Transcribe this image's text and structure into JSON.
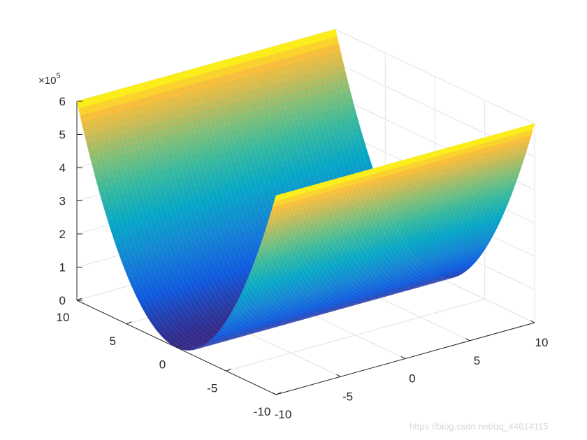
{
  "chart_data": {
    "type": "surface",
    "title": "",
    "xlabel": "",
    "ylabel": "",
    "zlabel": "",
    "function": "z = 6000 * y^2",
    "x_range": [
      -10,
      10
    ],
    "y_range": [
      -10,
      10
    ],
    "z_range": [
      0,
      600000
    ],
    "x_ticks": [
      -10,
      -5,
      0,
      5,
      10
    ],
    "y_ticks": [
      -10,
      -5,
      0,
      5,
      10
    ],
    "z_ticks": [
      0,
      1,
      2,
      3,
      4,
      5,
      6
    ],
    "x_tick_labels": [
      "-10",
      "-5",
      "0",
      "5",
      "10"
    ],
    "y_tick_labels": [
      "-10",
      "-5",
      "0",
      "5",
      "10"
    ],
    "z_tick_labels": [
      "0",
      "1",
      "2",
      "3",
      "4",
      "5",
      "6"
    ],
    "z_exponent": {
      "base": "×10",
      "power": "5"
    },
    "z_grid_scale": 100000,
    "colormap": "parula",
    "surface_samples": [
      {
        "y": -10,
        "z": 600000
      },
      {
        "y": -7.5,
        "z": 337500
      },
      {
        "y": -5,
        "z": 150000
      },
      {
        "y": -2.5,
        "z": 37500
      },
      {
        "y": 0,
        "z": 0
      },
      {
        "y": 2.5,
        "z": 37500
      },
      {
        "y": 5,
        "z": 150000
      },
      {
        "y": 7.5,
        "z": 337500
      },
      {
        "y": 10,
        "z": 600000
      }
    ],
    "grid": true,
    "box": "open-3d-axes"
  },
  "watermark": "https://blog.csdn.net/qq_44614115"
}
